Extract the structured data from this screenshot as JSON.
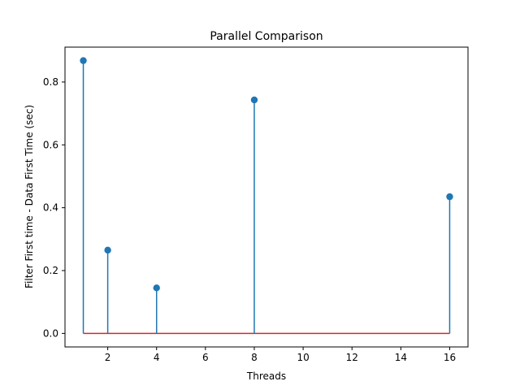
{
  "chart_data": {
    "type": "stem",
    "title": "Parallel Comparison",
    "xlabel": "Threads",
    "ylabel": "Filter First time - Data First Time (sec)",
    "x": [
      1,
      2,
      4,
      8,
      16
    ],
    "series": [
      {
        "values": [
          0.868,
          0.265,
          0.145,
          0.743,
          0.435
        ]
      }
    ],
    "xlim": [
      0.25,
      16.75
    ],
    "ylim": [
      -0.043,
      0.911
    ],
    "xticks": [
      2,
      4,
      6,
      8,
      10,
      12,
      14,
      16
    ],
    "yticks": [
      0.0,
      0.2,
      0.4,
      0.6,
      0.8
    ],
    "xtick_labels": [
      "2",
      "4",
      "6",
      "8",
      "10",
      "12",
      "14",
      "16"
    ],
    "ytick_labels": [
      "0.0",
      "0.2",
      "0.4",
      "0.6",
      "0.8"
    ],
    "baseline": 0,
    "grid": false,
    "colors": {
      "stem": "#1f77b4",
      "marker": "#1f77b4",
      "baseline": "#d62728",
      "axes": "#000000"
    }
  }
}
